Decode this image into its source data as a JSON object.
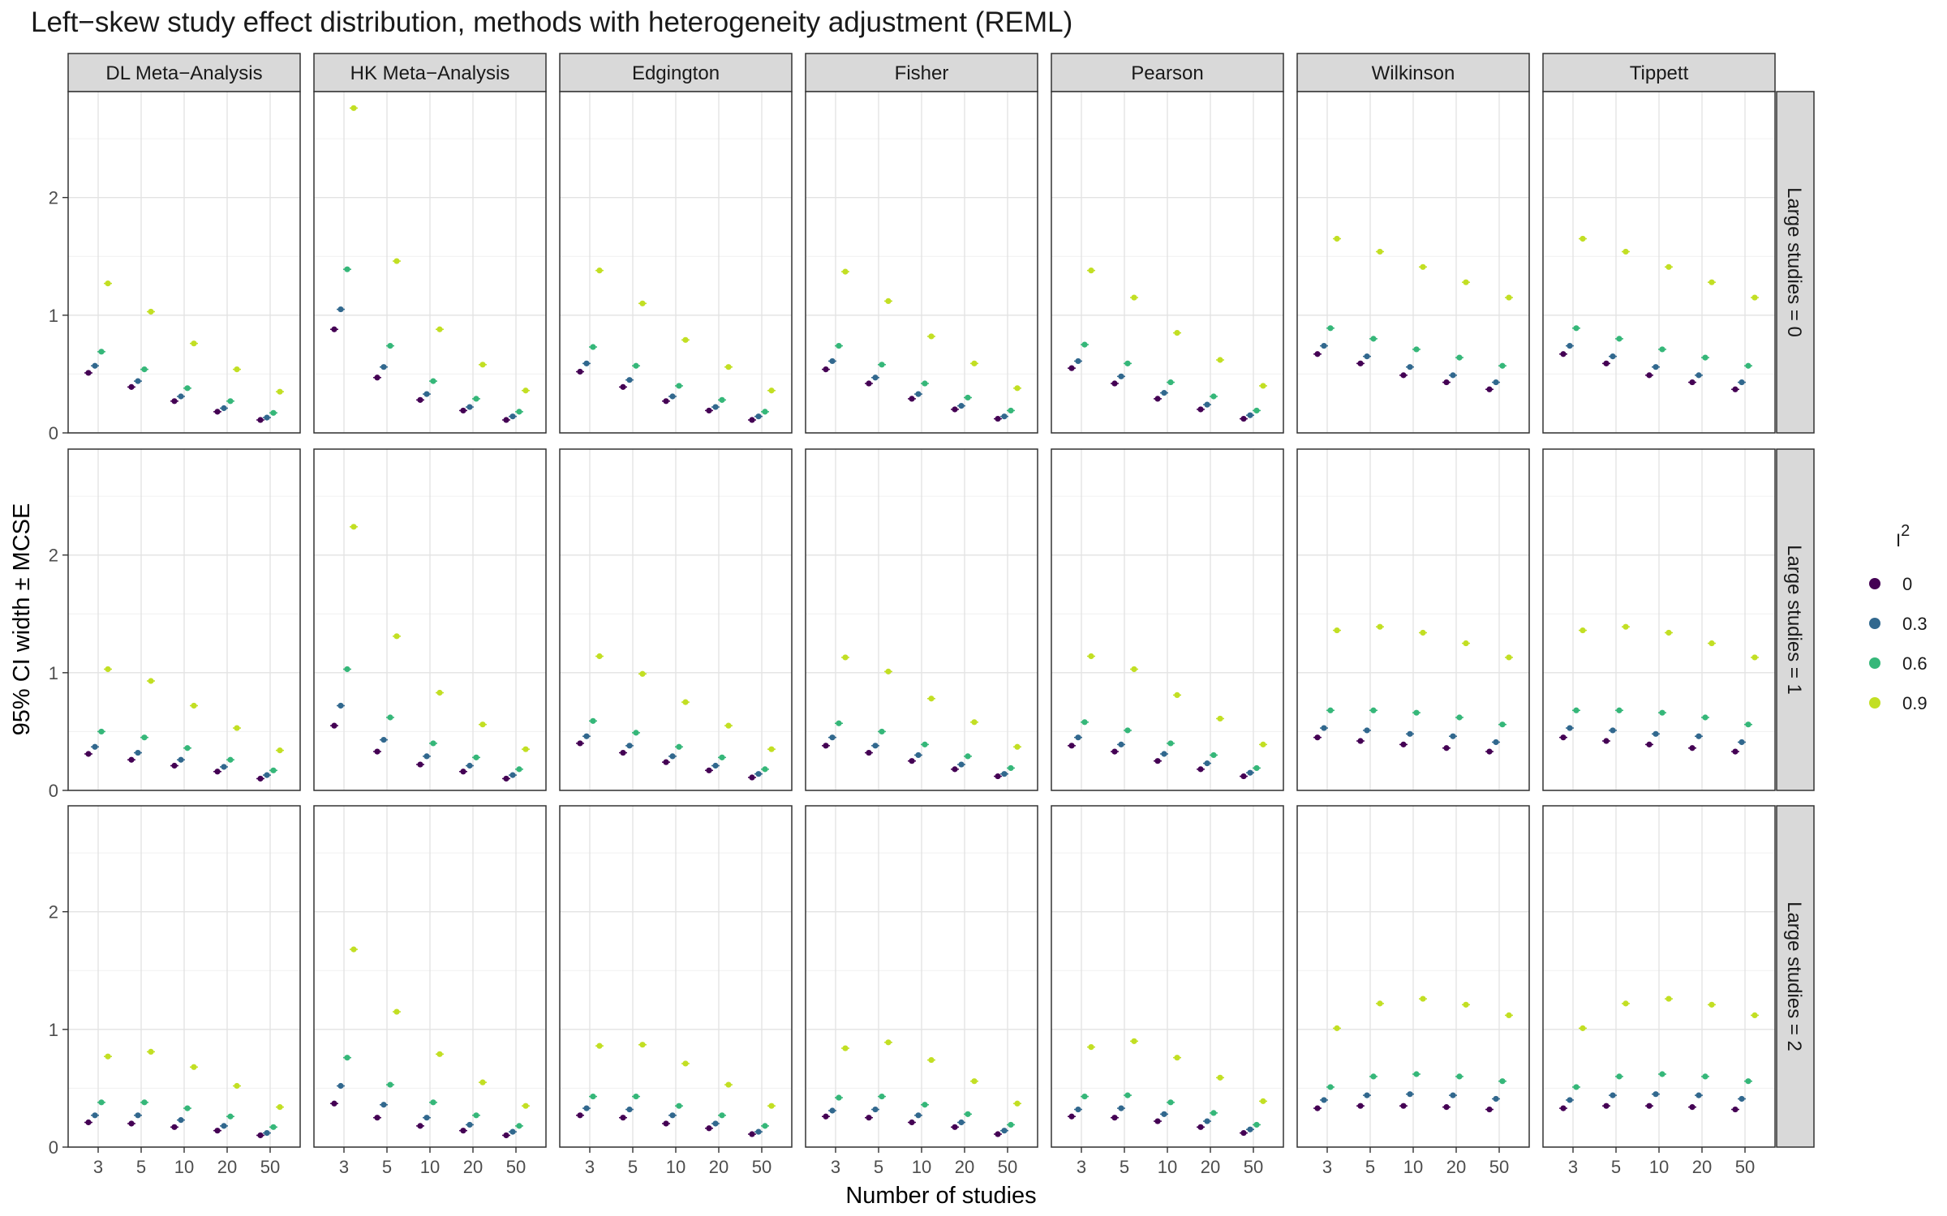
{
  "chart_data": {
    "type": "scatter",
    "title": "Left−skew study effect distribution, methods with heterogeneity adjustment (REML)",
    "xlabel": "Number of studies",
    "ylabel": "95% CI width ± MCSE",
    "x": [
      "3",
      "5",
      "10",
      "20",
      "50"
    ],
    "ylim": [
      0,
      2.9
    ],
    "yticks": [
      0,
      1,
      2
    ],
    "grid": true,
    "columns": [
      "DL Meta−Analysis",
      "HK Meta−Analysis",
      "Edgington",
      "Fisher",
      "Pearson",
      "Wilkinson",
      "Tippett"
    ],
    "rows": [
      "Large studies = 0",
      "Large studies = 1",
      "Large studies = 2"
    ],
    "legend": {
      "title_base": "I",
      "title_sup": "2",
      "placement": "right",
      "entries": [
        {
          "label": "0",
          "color": "#440154"
        },
        {
          "label": "0.3",
          "color": "#31688E"
        },
        {
          "label": "0.6",
          "color": "#35B779"
        },
        {
          "label": "0.9",
          "color": "#C2DF23"
        }
      ]
    },
    "values": [
      [
        [
          [
            0.51,
            0.57,
            0.69,
            1.27
          ],
          [
            0.39,
            0.44,
            0.54,
            1.03
          ],
          [
            0.27,
            0.31,
            0.38,
            0.76
          ],
          [
            0.18,
            0.21,
            0.27,
            0.54
          ],
          [
            0.11,
            0.13,
            0.17,
            0.35
          ]
        ],
        [
          [
            0.88,
            1.05,
            1.39,
            2.76
          ],
          [
            0.47,
            0.56,
            0.74,
            1.46
          ],
          [
            0.28,
            0.33,
            0.44,
            0.88
          ],
          [
            0.19,
            0.22,
            0.29,
            0.58
          ],
          [
            0.11,
            0.14,
            0.18,
            0.36
          ]
        ],
        [
          [
            0.52,
            0.59,
            0.73,
            1.38
          ],
          [
            0.39,
            0.45,
            0.57,
            1.1
          ],
          [
            0.27,
            0.31,
            0.4,
            0.79
          ],
          [
            0.19,
            0.22,
            0.28,
            0.56
          ],
          [
            0.11,
            0.14,
            0.18,
            0.36
          ]
        ],
        [
          [
            0.54,
            0.61,
            0.74,
            1.37
          ],
          [
            0.42,
            0.47,
            0.58,
            1.12
          ],
          [
            0.29,
            0.33,
            0.42,
            0.82
          ],
          [
            0.2,
            0.23,
            0.3,
            0.59
          ],
          [
            0.12,
            0.14,
            0.19,
            0.38
          ]
        ],
        [
          [
            0.55,
            0.61,
            0.75,
            1.38
          ],
          [
            0.42,
            0.48,
            0.59,
            1.15
          ],
          [
            0.29,
            0.34,
            0.43,
            0.85
          ],
          [
            0.2,
            0.24,
            0.31,
            0.62
          ],
          [
            0.12,
            0.15,
            0.19,
            0.4
          ]
        ],
        [
          [
            0.67,
            0.74,
            0.89,
            1.65
          ],
          [
            0.59,
            0.65,
            0.8,
            1.54
          ],
          [
            0.49,
            0.56,
            0.71,
            1.41
          ],
          [
            0.43,
            0.49,
            0.64,
            1.28
          ],
          [
            0.37,
            0.43,
            0.57,
            1.15
          ]
        ],
        [
          [
            0.67,
            0.74,
            0.89,
            1.65
          ],
          [
            0.59,
            0.65,
            0.8,
            1.54
          ],
          [
            0.49,
            0.56,
            0.71,
            1.41
          ],
          [
            0.43,
            0.49,
            0.64,
            1.28
          ],
          [
            0.37,
            0.43,
            0.57,
            1.15
          ]
        ]
      ],
      [
        [
          [
            0.31,
            0.37,
            0.5,
            1.03
          ],
          [
            0.26,
            0.32,
            0.45,
            0.93
          ],
          [
            0.21,
            0.26,
            0.36,
            0.72
          ],
          [
            0.16,
            0.2,
            0.26,
            0.53
          ],
          [
            0.1,
            0.13,
            0.17,
            0.34
          ]
        ],
        [
          [
            0.55,
            0.72,
            1.03,
            2.24
          ],
          [
            0.33,
            0.43,
            0.62,
            1.31
          ],
          [
            0.22,
            0.29,
            0.4,
            0.83
          ],
          [
            0.16,
            0.21,
            0.28,
            0.56
          ],
          [
            0.1,
            0.13,
            0.18,
            0.35
          ]
        ],
        [
          [
            0.4,
            0.46,
            0.59,
            1.14
          ],
          [
            0.32,
            0.38,
            0.49,
            0.99
          ],
          [
            0.24,
            0.29,
            0.37,
            0.75
          ],
          [
            0.17,
            0.21,
            0.28,
            0.55
          ],
          [
            0.11,
            0.14,
            0.18,
            0.35
          ]
        ],
        [
          [
            0.38,
            0.45,
            0.57,
            1.13
          ],
          [
            0.32,
            0.38,
            0.5,
            1.01
          ],
          [
            0.25,
            0.3,
            0.39,
            0.78
          ],
          [
            0.18,
            0.22,
            0.29,
            0.58
          ],
          [
            0.12,
            0.14,
            0.19,
            0.37
          ]
        ],
        [
          [
            0.38,
            0.45,
            0.58,
            1.14
          ],
          [
            0.33,
            0.39,
            0.51,
            1.03
          ],
          [
            0.25,
            0.31,
            0.4,
            0.81
          ],
          [
            0.18,
            0.23,
            0.3,
            0.61
          ],
          [
            0.12,
            0.15,
            0.19,
            0.39
          ]
        ],
        [
          [
            0.45,
            0.53,
            0.68,
            1.36
          ],
          [
            0.42,
            0.51,
            0.68,
            1.39
          ],
          [
            0.39,
            0.48,
            0.66,
            1.34
          ],
          [
            0.36,
            0.46,
            0.62,
            1.25
          ],
          [
            0.33,
            0.41,
            0.56,
            1.13
          ]
        ],
        [
          [
            0.45,
            0.53,
            0.68,
            1.36
          ],
          [
            0.42,
            0.51,
            0.68,
            1.39
          ],
          [
            0.39,
            0.48,
            0.66,
            1.34
          ],
          [
            0.36,
            0.46,
            0.62,
            1.25
          ],
          [
            0.33,
            0.41,
            0.56,
            1.13
          ]
        ]
      ],
      [
        [
          [
            0.21,
            0.27,
            0.38,
            0.77
          ],
          [
            0.2,
            0.27,
            0.38,
            0.81
          ],
          [
            0.17,
            0.23,
            0.33,
            0.68
          ],
          [
            0.14,
            0.18,
            0.26,
            0.52
          ],
          [
            0.1,
            0.12,
            0.17,
            0.34
          ]
        ],
        [
          [
            0.37,
            0.52,
            0.76,
            1.68
          ],
          [
            0.25,
            0.36,
            0.53,
            1.15
          ],
          [
            0.18,
            0.25,
            0.38,
            0.79
          ],
          [
            0.14,
            0.19,
            0.27,
            0.55
          ],
          [
            0.1,
            0.13,
            0.18,
            0.35
          ]
        ],
        [
          [
            0.27,
            0.33,
            0.43,
            0.86
          ],
          [
            0.25,
            0.32,
            0.43,
            0.87
          ],
          [
            0.2,
            0.27,
            0.35,
            0.71
          ],
          [
            0.16,
            0.2,
            0.27,
            0.53
          ],
          [
            0.11,
            0.13,
            0.18,
            0.35
          ]
        ],
        [
          [
            0.26,
            0.31,
            0.42,
            0.84
          ],
          [
            0.25,
            0.32,
            0.43,
            0.89
          ],
          [
            0.21,
            0.27,
            0.36,
            0.74
          ],
          [
            0.17,
            0.21,
            0.28,
            0.56
          ],
          [
            0.11,
            0.14,
            0.19,
            0.37
          ]
        ],
        [
          [
            0.26,
            0.32,
            0.43,
            0.85
          ],
          [
            0.25,
            0.33,
            0.44,
            0.9
          ],
          [
            0.22,
            0.28,
            0.38,
            0.76
          ],
          [
            0.17,
            0.22,
            0.29,
            0.59
          ],
          [
            0.12,
            0.15,
            0.19,
            0.39
          ]
        ],
        [
          [
            0.33,
            0.4,
            0.51,
            1.01
          ],
          [
            0.35,
            0.44,
            0.6,
            1.22
          ],
          [
            0.35,
            0.45,
            0.62,
            1.26
          ],
          [
            0.34,
            0.44,
            0.6,
            1.21
          ],
          [
            0.32,
            0.41,
            0.56,
            1.12
          ]
        ],
        [
          [
            0.33,
            0.4,
            0.51,
            1.01
          ],
          [
            0.35,
            0.44,
            0.6,
            1.22
          ],
          [
            0.35,
            0.45,
            0.62,
            1.26
          ],
          [
            0.34,
            0.44,
            0.6,
            1.21
          ],
          [
            0.32,
            0.41,
            0.56,
            1.12
          ]
        ]
      ]
    ]
  }
}
